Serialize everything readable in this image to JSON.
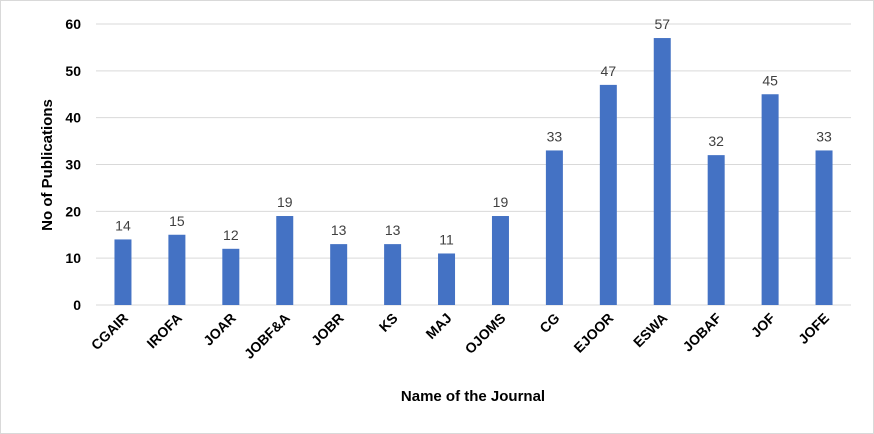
{
  "chart_data": {
    "type": "bar",
    "title": "",
    "xlabel": "Name of the Journal",
    "ylabel": "No of Publications",
    "categories": [
      "CGAIR",
      "IROFA",
      "JOAR",
      "JOBF&A",
      "JOBR",
      "KS",
      "MAJ",
      "OJOMS",
      "CG",
      "EJOOR",
      "ESWA",
      "JOBAF",
      "JOF",
      "JOFE"
    ],
    "values": [
      14,
      15,
      12,
      19,
      13,
      13,
      11,
      19,
      33,
      47,
      57,
      32,
      45,
      33
    ],
    "ylim": [
      0,
      60
    ],
    "yticks": [
      0,
      10,
      20,
      30,
      40,
      50,
      60
    ],
    "grid": true,
    "legend": "none",
    "bar_color": "#4472c4",
    "grid_color": "#d9d9d9"
  }
}
